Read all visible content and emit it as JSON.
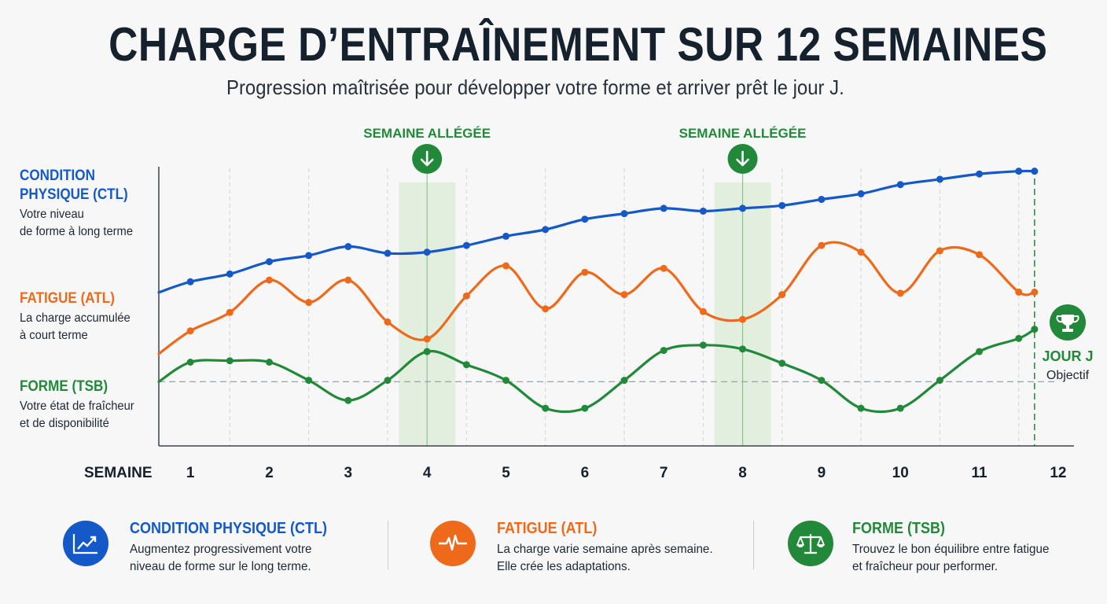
{
  "title": "CHARGE D’ENTRAÎNEMENT SUR 12 SEMAINES",
  "subtitle": "Progression maîtrisée pour développer votre forme et arriver prêt le jour J.",
  "side_labels": {
    "ctl": {
      "title_line1": "CONDITION",
      "title_line2": "PHYSIQUE (CTL)",
      "desc_line1": "Votre niveau",
      "desc_line2": "de forme à long terme"
    },
    "atl": {
      "title": "FATIGUE (ATL)",
      "desc_line1": "La charge accumulée",
      "desc_line2": "à court terme"
    },
    "tsb": {
      "title": "FORME (TSB)",
      "desc_line1": "Votre état de fraîcheur",
      "desc_line2": "et de disponibilité"
    }
  },
  "goal": {
    "title": "JOUR J",
    "subtitle": "Objectif",
    "icon": "trophy-icon"
  },
  "deload_label": "SEMAINE ALLÉGÉE",
  "colors": {
    "ctl": "#1459c7",
    "atl": "#ee6a1a",
    "tsb": "#23893a",
    "deload_band": "#e2efdf"
  },
  "chart_data": {
    "type": "line",
    "xlabel": "SEMAINE",
    "x_ticks": [
      "1",
      "2",
      "3",
      "4",
      "5",
      "6",
      "7",
      "8",
      "9",
      "10",
      "11",
      "12"
    ],
    "xlim": [
      0.6,
      12.2
    ],
    "ylim": [
      0,
      100
    ],
    "deload_weeks": [
      4,
      8
    ],
    "deload_label": "SEMAINE ALLÉGÉE",
    "target_week": 11.7,
    "zero_line": 23,
    "series": [
      {
        "name": "CONDITION PHYSIQUE (CTL)",
        "color": "#1459c7",
        "x": [
          0.6,
          1,
          1.5,
          2,
          2.5,
          3,
          3.5,
          4,
          4.5,
          5,
          5.5,
          6,
          6.5,
          7,
          7.5,
          8,
          8.5,
          9,
          9.5,
          10,
          10.5,
          11,
          11.5,
          11.7
        ],
        "y": [
          55,
          58.8,
          61.6,
          66,
          68.2,
          71.4,
          69,
          69.4,
          71.8,
          75.1,
          77.5,
          81.2,
          83.2,
          85.1,
          84.1,
          85.1,
          86.1,
          88.3,
          90.3,
          93.6,
          95.5,
          97.4,
          98.4,
          98.4
        ]
      },
      {
        "name": "FATIGUE (ATL)",
        "color": "#ee6a1a",
        "x": [
          0.6,
          1,
          1.5,
          2,
          2.5,
          3,
          3.5,
          4,
          4.5,
          5,
          5.5,
          6,
          6.5,
          7,
          7.5,
          8,
          8.5,
          9,
          9.5,
          10,
          10.5,
          11,
          11.5,
          11.7
        ],
        "y": [
          33,
          41.2,
          47.8,
          59.4,
          51.4,
          59.4,
          44.4,
          38.3,
          53.7,
          64.5,
          49.1,
          62.2,
          54.2,
          63.6,
          48.1,
          45.3,
          54.2,
          71.8,
          69.4,
          54.7,
          69.9,
          68.5,
          55.1,
          55.1
        ]
      },
      {
        "name": "FORME (TSB)",
        "color": "#23893a",
        "x": [
          0.6,
          1,
          1.5,
          2,
          2.5,
          3,
          3.5,
          4,
          4.5,
          5,
          5.5,
          6,
          6.5,
          7,
          7.5,
          8,
          8.5,
          9,
          9.5,
          10,
          10.5,
          11,
          11.5,
          11.7
        ],
        "y": [
          23,
          30,
          30.5,
          30,
          23.5,
          16.3,
          23.5,
          33.8,
          29.1,
          23.5,
          13.5,
          13.5,
          23.5,
          34.2,
          36.1,
          34.7,
          29.6,
          23.5,
          13.5,
          13.5,
          23.5,
          33.8,
          38.5,
          41.8
        ]
      }
    ]
  },
  "legend": [
    {
      "title": "CONDITION PHYSIQUE (CTL)",
      "desc_line1": "Augmentez progressivement votre",
      "desc_line2": "niveau de forme sur le long terme.",
      "icon": "trend-chart-icon"
    },
    {
      "title": "FATIGUE (ATL)",
      "desc_line1": "La charge varie semaine après semaine.",
      "desc_line2": "Elle crée les adaptations.",
      "icon": "heartbeat-icon"
    },
    {
      "title": "FORME (TSB)",
      "desc_line1": "Trouvez le bon équilibre entre fatigue",
      "desc_line2": "et fraîcheur pour performer.",
      "icon": "balance-scale-icon"
    }
  ]
}
